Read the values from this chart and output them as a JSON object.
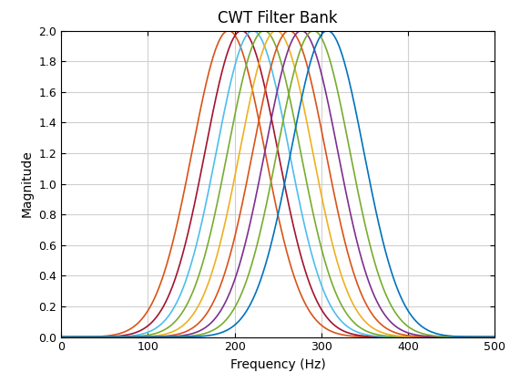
{
  "title": "CWT Filter Bank",
  "xlabel": "Frequency (Hz)",
  "ylabel": "Magnitude",
  "xlim": [
    0,
    500
  ],
  "ylim": [
    0,
    2.0
  ],
  "xticks": [
    0,
    100,
    200,
    300,
    400,
    500
  ],
  "yticks": [
    0,
    0.2,
    0.4,
    0.6,
    0.8,
    1.0,
    1.2,
    1.4,
    1.6,
    1.8,
    2.0
  ],
  "peak_amplitude": 2.0,
  "centers": [
    193,
    208,
    221,
    234,
    248,
    263,
    277,
    291,
    307
  ],
  "sigma": 42,
  "line_colors": [
    "#D95319",
    "#A2142F",
    "#4DBEEE",
    "#77AC30",
    "#EDB120",
    "#D95319",
    "#7E2F8E",
    "#77AC30",
    "#0072BD"
  ],
  "background_color": "#ffffff",
  "grid_color": "#d0d0d0",
  "title_fontsize": 12,
  "label_fontsize": 10,
  "linewidth": 1.2
}
